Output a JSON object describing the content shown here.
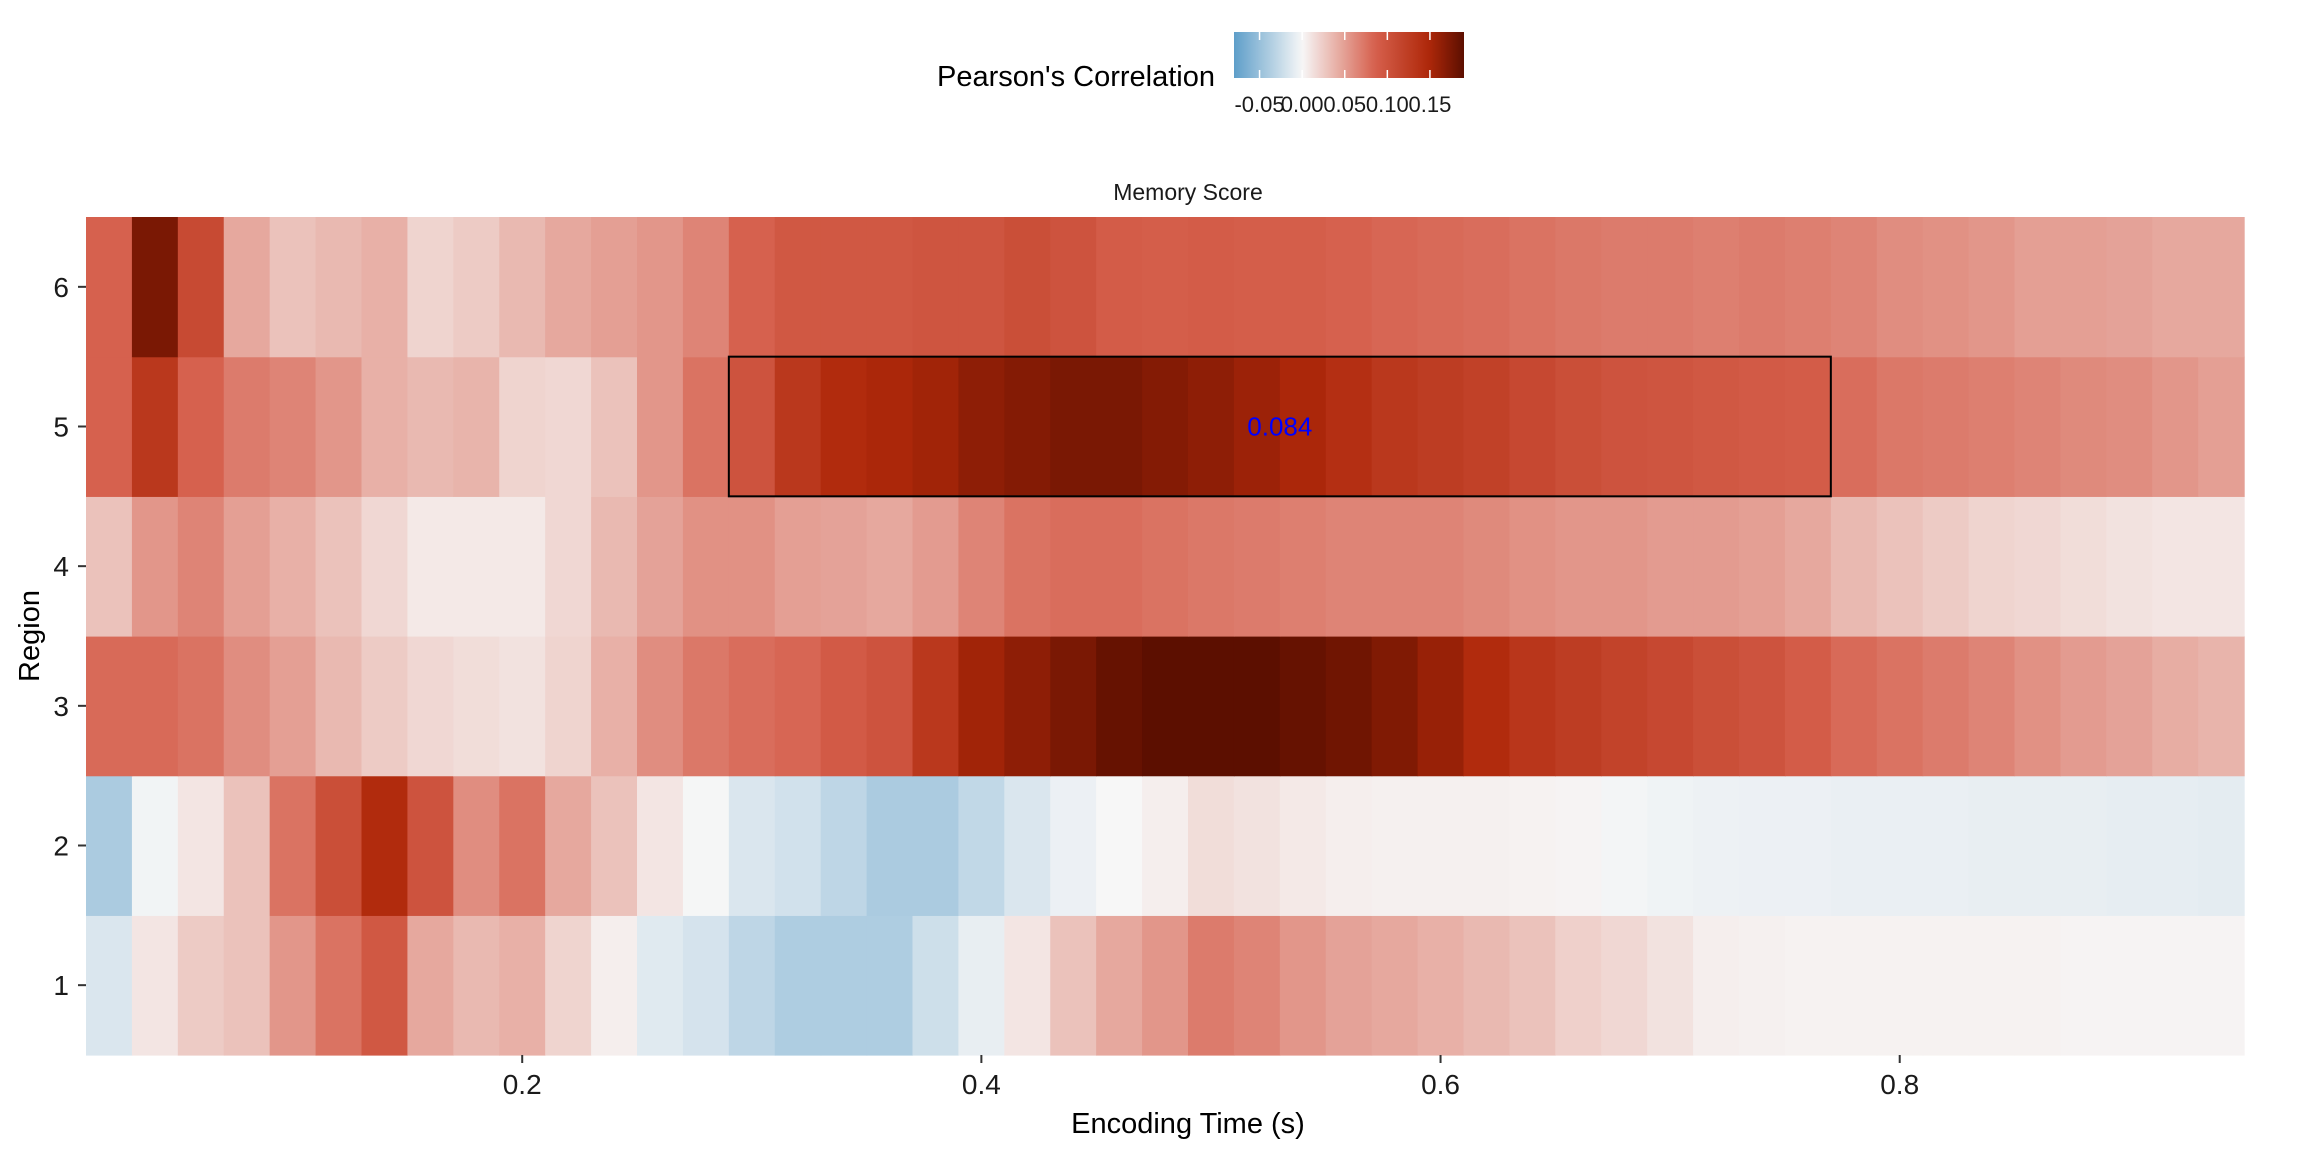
{
  "chart_data": {
    "type": "heatmap",
    "title": "Memory Score",
    "xlabel": "Encoding Time (s)",
    "ylabel": "Region",
    "legend": {
      "title": "Pearson's Correlation",
      "position": "top",
      "ticks": [
        -0.05,
        0.0,
        0.05,
        0.1,
        0.15
      ],
      "tick_labels": [
        "-0.05",
        "0.00",
        "0.05",
        "0.10",
        "0.15"
      ],
      "range": [
        -0.08,
        0.19
      ]
    },
    "x": {
      "start": 0.02,
      "step": 0.02,
      "count": 47,
      "lim": [
        0.02,
        0.96
      ],
      "ticks": [
        0.2,
        0.4,
        0.6,
        0.8
      ],
      "tick_labels": [
        "0.2",
        "0.4",
        "0.6",
        "0.8"
      ]
    },
    "y_categories": [
      "1",
      "2",
      "3",
      "4",
      "5",
      "6"
    ],
    "colors": {
      "low": "#5e9ec9",
      "mid": "#f7f7f7",
      "high": "#5c0f00",
      "annotation_text": "#0000ff",
      "box": "#000000"
    },
    "values": [
      [
        -0.015,
        0.01,
        0.025,
        0.03,
        0.055,
        0.075,
        0.095,
        0.045,
        0.035,
        0.04,
        0.02,
        0.005,
        -0.012,
        -0.018,
        -0.03,
        -0.038,
        -0.038,
        -0.038,
        -0.022,
        -0.008,
        0.01,
        0.03,
        0.045,
        0.055,
        0.07,
        0.065,
        0.055,
        0.048,
        0.045,
        0.04,
        0.035,
        0.03,
        0.022,
        0.018,
        0.012,
        0.005,
        0.004,
        0.003,
        0.003,
        0.003,
        0.003,
        0.003,
        0.003,
        0.002,
        0.002,
        0.002,
        0.002
      ],
      [
        -0.04,
        -0.003,
        0.01,
        0.03,
        0.075,
        0.105,
        0.145,
        0.1,
        0.06,
        0.075,
        0.045,
        0.03,
        0.01,
        -0.001,
        -0.015,
        -0.02,
        -0.03,
        -0.04,
        -0.04,
        -0.028,
        -0.015,
        -0.006,
        0.0,
        0.005,
        0.015,
        0.012,
        0.008,
        0.005,
        0.004,
        0.004,
        0.004,
        0.003,
        0.002,
        -0.002,
        -0.004,
        -0.005,
        -0.006,
        -0.006,
        -0.007,
        -0.007,
        -0.007,
        -0.008,
        -0.008,
        -0.008,
        -0.009,
        -0.009,
        -0.01
      ],
      [
        0.08,
        0.08,
        0.075,
        0.06,
        0.05,
        0.035,
        0.025,
        0.018,
        0.015,
        0.012,
        0.02,
        0.04,
        0.06,
        0.072,
        0.078,
        0.082,
        0.092,
        0.1,
        0.13,
        0.155,
        0.165,
        0.175,
        0.185,
        0.19,
        0.19,
        0.19,
        0.185,
        0.18,
        0.172,
        0.16,
        0.145,
        0.132,
        0.125,
        0.118,
        0.112,
        0.105,
        0.1,
        0.09,
        0.08,
        0.075,
        0.07,
        0.065,
        0.058,
        0.052,
        0.048,
        0.042,
        0.038
      ],
      [
        0.03,
        0.055,
        0.065,
        0.05,
        0.04,
        0.03,
        0.018,
        0.008,
        0.008,
        0.008,
        0.018,
        0.035,
        0.048,
        0.058,
        0.058,
        0.05,
        0.048,
        0.045,
        0.052,
        0.065,
        0.075,
        0.078,
        0.078,
        0.075,
        0.072,
        0.07,
        0.068,
        0.065,
        0.065,
        0.065,
        0.062,
        0.058,
        0.055,
        0.055,
        0.052,
        0.052,
        0.05,
        0.045,
        0.035,
        0.03,
        0.025,
        0.02,
        0.018,
        0.015,
        0.012,
        0.01,
        0.01
      ],
      [
        0.085,
        0.13,
        0.085,
        0.07,
        0.065,
        0.055,
        0.04,
        0.035,
        0.038,
        0.02,
        0.018,
        0.03,
        0.055,
        0.075,
        0.1,
        0.13,
        0.145,
        0.15,
        0.155,
        0.165,
        0.17,
        0.175,
        0.175,
        0.17,
        0.165,
        0.158,
        0.15,
        0.14,
        0.13,
        0.125,
        0.12,
        0.112,
        0.105,
        0.1,
        0.098,
        0.095,
        0.092,
        0.09,
        0.078,
        0.072,
        0.07,
        0.068,
        0.065,
        0.062,
        0.06,
        0.055,
        0.05
      ],
      [
        0.085,
        0.175,
        0.11,
        0.045,
        0.03,
        0.035,
        0.04,
        0.02,
        0.025,
        0.035,
        0.045,
        0.05,
        0.055,
        0.065,
        0.085,
        0.095,
        0.095,
        0.095,
        0.098,
        0.098,
        0.105,
        0.1,
        0.09,
        0.088,
        0.09,
        0.088,
        0.088,
        0.085,
        0.082,
        0.08,
        0.078,
        0.075,
        0.072,
        0.07,
        0.07,
        0.068,
        0.07,
        0.068,
        0.065,
        0.06,
        0.058,
        0.055,
        0.05,
        0.05,
        0.048,
        0.045,
        0.045
      ]
    ],
    "annotation": {
      "text": "0.084",
      "region": "5",
      "x_start": 0.29,
      "x_end": 0.77
    }
  }
}
